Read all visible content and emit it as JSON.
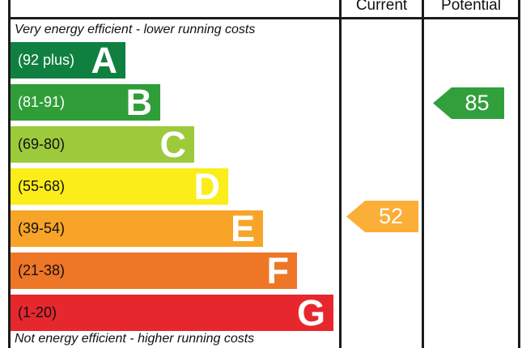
{
  "header": {
    "current": "Current",
    "potential": "Potential"
  },
  "notes": {
    "top": "Very energy efficient - lower running costs",
    "bottom": "Not energy efficient - higher running costs"
  },
  "bands": [
    {
      "grade": "A",
      "range": "(92 plus)",
      "color": "#108041"
    },
    {
      "grade": "B",
      "range": "(81-91)",
      "color": "#2f9e38"
    },
    {
      "grade": "C",
      "range": "(69-80)",
      "color": "#9dca3b"
    },
    {
      "grade": "D",
      "range": "(55-68)",
      "color": "#fbed19"
    },
    {
      "grade": "E",
      "range": "(39-54)",
      "color": "#f7a428"
    },
    {
      "grade": "F",
      "range": "(21-38)",
      "color": "#ee7627"
    },
    {
      "grade": "G",
      "range": "(1-20)",
      "color": "#e6282e"
    }
  ],
  "ratings": {
    "current": {
      "value": "52",
      "band": "E",
      "color": "#fbae38"
    },
    "potential": {
      "value": "85",
      "band": "B",
      "color": "#31a03c"
    }
  },
  "chart_data": {
    "type": "bar",
    "categories": [
      "A",
      "B",
      "C",
      "D",
      "E",
      "F",
      "G"
    ],
    "band_ranges": [
      "92 plus",
      "81-91",
      "69-80",
      "55-68",
      "39-54",
      "21-38",
      "1-20"
    ],
    "band_colors": [
      "#108041",
      "#2f9e38",
      "#9dca3b",
      "#fbed19",
      "#f7a428",
      "#ee7627",
      "#e6282e"
    ],
    "columns": [
      "Current",
      "Potential"
    ],
    "current_rating": 52,
    "current_band": "E",
    "potential_rating": 85,
    "potential_band": "B",
    "top_label": "Very energy efficient - lower running costs",
    "bottom_label": "Not energy efficient - higher running costs"
  }
}
